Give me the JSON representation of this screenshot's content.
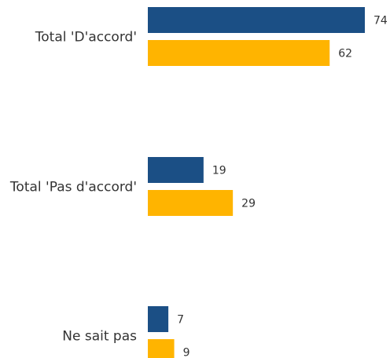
{
  "chart_data": {
    "type": "bar",
    "orientation": "horizontal",
    "categories": [
      "Total 'D'accord'",
      "Total 'Pas d'accord'",
      "Ne sait pas"
    ],
    "series": [
      {
        "values": [
          74,
          19,
          7
        ],
        "color": "#1b4f85"
      },
      {
        "values": [
          62,
          29,
          9
        ],
        "color": "#ffb400"
      }
    ],
    "title": "",
    "xlabel": "",
    "ylabel": "",
    "xlim": [
      0,
      74
    ],
    "grid": false,
    "legend": "none"
  }
}
